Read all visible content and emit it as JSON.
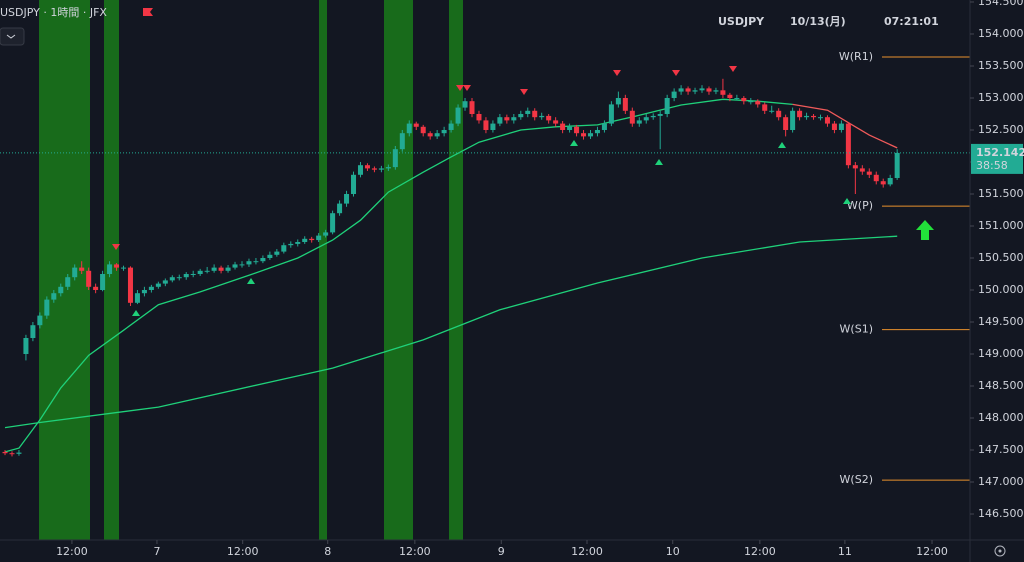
{
  "chart_data": {
    "type": "candlestick",
    "header": {
      "symbol_line": "USDJPY · 1時間 · JFX",
      "symbol": "USDJPY",
      "date": "10/13(月)",
      "time": "07:21:01"
    },
    "countdown": "38:58",
    "up_color": "#22ab94",
    "down_color": "#f23645",
    "ylim": [
      146.094,
      154.531
    ],
    "yticks": [
      {
        "value": 146.5,
        "label": "146.500"
      },
      {
        "value": 147,
        "label": "147.000"
      },
      {
        "value": 147.5,
        "label": "147.500"
      },
      {
        "value": 148,
        "label": "148.000"
      },
      {
        "value": 148.5,
        "label": "148.500"
      },
      {
        "value": 149,
        "label": "149.000"
      },
      {
        "value": 149.5,
        "label": "149.500"
      },
      {
        "value": 150,
        "label": "150.000"
      },
      {
        "value": 150.5,
        "label": "150.500"
      },
      {
        "value": 151,
        "label": "151.000"
      },
      {
        "value": 151.5,
        "label": "151.500"
      },
      {
        "value": 152,
        "label": "152.000"
      },
      {
        "value": 152.5,
        "label": "152.500"
      },
      {
        "value": 153,
        "label": "153.000"
      },
      {
        "value": 153.5,
        "label": "153.500"
      },
      {
        "value": 154,
        "label": "154.000"
      },
      {
        "value": 154.5,
        "label": "154.500"
      }
    ],
    "xlim": [
      -0.72,
      138.45
    ],
    "xticks": [
      {
        "value": 9.6,
        "label": "12:00"
      },
      {
        "value": 21.8,
        "label": "7"
      },
      {
        "value": 34.1,
        "label": "12:00"
      },
      {
        "value": 46.3,
        "label": "8"
      },
      {
        "value": 58.8,
        "label": "12:00"
      },
      {
        "value": 71.2,
        "label": "9"
      },
      {
        "value": 83.5,
        "label": "12:00"
      },
      {
        "value": 95.8,
        "label": "10"
      },
      {
        "value": 108.3,
        "label": "12:00"
      },
      {
        "value": 120.5,
        "label": "11"
      },
      {
        "value": 133.0,
        "label": "12:00"
      }
    ],
    "candles": [
      [
        147.47,
        147.5,
        147.42,
        147.45
      ],
      [
        147.45,
        147.48,
        147.4,
        147.44
      ],
      [
        147.44,
        147.5,
        147.41,
        147.46
      ],
      [
        149.0,
        149.3,
        148.9,
        149.25
      ],
      [
        149.25,
        149.5,
        149.2,
        149.45
      ],
      [
        149.45,
        149.65,
        149.4,
        149.6
      ],
      [
        149.6,
        149.9,
        149.55,
        149.85
      ],
      [
        149.85,
        150.0,
        149.8,
        149.95
      ],
      [
        149.95,
        150.1,
        149.9,
        150.05
      ],
      [
        150.05,
        150.25,
        150.0,
        150.2
      ],
      [
        150.2,
        150.4,
        150.15,
        150.35
      ],
      [
        150.35,
        150.45,
        150.25,
        150.3
      ],
      [
        150.3,
        150.35,
        150.0,
        150.05
      ],
      [
        150.05,
        150.1,
        149.95,
        150.0
      ],
      [
        150.0,
        150.3,
        149.98,
        150.25
      ],
      [
        150.25,
        150.45,
        150.2,
        150.4
      ],
      [
        150.4,
        150.42,
        150.3,
        150.35
      ],
      [
        150.35,
        150.38,
        150.3,
        150.35
      ],
      [
        150.35,
        150.37,
        149.75,
        149.8
      ],
      [
        149.8,
        150.0,
        149.78,
        149.95
      ],
      [
        149.95,
        150.05,
        149.9,
        150.0
      ],
      [
        150.0,
        150.08,
        149.96,
        150.05
      ],
      [
        150.05,
        150.13,
        150.02,
        150.1
      ],
      [
        150.1,
        150.18,
        150.06,
        150.15
      ],
      [
        150.15,
        150.23,
        150.12,
        150.2
      ],
      [
        150.2,
        150.24,
        150.15,
        150.2
      ],
      [
        150.2,
        150.28,
        150.16,
        150.25
      ],
      [
        150.25,
        150.3,
        150.2,
        150.25
      ],
      [
        150.25,
        150.33,
        150.22,
        150.3
      ],
      [
        150.3,
        150.36,
        150.26,
        150.3
      ],
      [
        150.3,
        150.4,
        150.27,
        150.35
      ],
      [
        150.35,
        150.38,
        150.26,
        150.3
      ],
      [
        150.3,
        150.39,
        150.27,
        150.35
      ],
      [
        150.35,
        150.44,
        150.32,
        150.4
      ],
      [
        150.4,
        150.45,
        150.35,
        150.4
      ],
      [
        150.4,
        150.49,
        150.36,
        150.45
      ],
      [
        150.45,
        150.5,
        150.4,
        150.45
      ],
      [
        150.45,
        150.54,
        150.42,
        150.5
      ],
      [
        150.5,
        150.6,
        150.47,
        150.55
      ],
      [
        150.55,
        150.64,
        150.52,
        150.6
      ],
      [
        150.6,
        150.74,
        150.57,
        150.7
      ],
      [
        150.7,
        150.76,
        150.66,
        150.72
      ],
      [
        150.72,
        150.79,
        150.68,
        150.75
      ],
      [
        150.75,
        150.84,
        150.72,
        150.8
      ],
      [
        150.8,
        150.83,
        150.74,
        150.78
      ],
      [
        150.78,
        150.89,
        150.75,
        150.85
      ],
      [
        150.85,
        150.94,
        150.82,
        150.9
      ],
      [
        150.9,
        151.24,
        150.87,
        151.2
      ],
      [
        151.2,
        151.4,
        151.16,
        151.35
      ],
      [
        151.35,
        151.55,
        151.3,
        151.5
      ],
      [
        151.5,
        151.85,
        151.46,
        151.8
      ],
      [
        151.8,
        152.0,
        151.76,
        151.95
      ],
      [
        151.95,
        151.98,
        151.86,
        151.9
      ],
      [
        151.9,
        151.93,
        151.84,
        151.88
      ],
      [
        151.88,
        151.94,
        151.84,
        151.9
      ],
      [
        151.9,
        151.96,
        151.86,
        151.92
      ],
      [
        151.92,
        152.25,
        151.88,
        152.2
      ],
      [
        152.2,
        152.5,
        152.16,
        152.45
      ],
      [
        152.45,
        152.65,
        152.4,
        152.6
      ],
      [
        152.6,
        152.63,
        152.5,
        152.55
      ],
      [
        152.55,
        152.58,
        152.4,
        152.45
      ],
      [
        152.45,
        152.48,
        152.35,
        152.4
      ],
      [
        152.4,
        152.5,
        152.36,
        152.45
      ],
      [
        152.45,
        152.55,
        152.4,
        152.5
      ],
      [
        152.5,
        152.65,
        152.46,
        152.6
      ],
      [
        152.6,
        152.9,
        152.56,
        152.85
      ],
      [
        152.85,
        153.0,
        152.8,
        152.95
      ],
      [
        152.95,
        153.0,
        152.7,
        152.75
      ],
      [
        152.75,
        152.8,
        152.6,
        152.65
      ],
      [
        152.65,
        152.7,
        152.45,
        152.5
      ],
      [
        152.5,
        152.65,
        152.46,
        152.6
      ],
      [
        152.6,
        152.75,
        152.56,
        152.7
      ],
      [
        152.7,
        152.74,
        152.6,
        152.65
      ],
      [
        152.65,
        152.75,
        152.6,
        152.7
      ],
      [
        152.7,
        152.8,
        152.66,
        152.75
      ],
      [
        152.75,
        152.85,
        152.7,
        152.8
      ],
      [
        152.8,
        152.84,
        152.65,
        152.7
      ],
      [
        152.7,
        152.77,
        152.66,
        152.72
      ],
      [
        152.72,
        152.75,
        152.6,
        152.65
      ],
      [
        152.65,
        152.7,
        152.55,
        152.6
      ],
      [
        152.6,
        152.64,
        152.45,
        152.5
      ],
      [
        152.5,
        152.6,
        152.46,
        152.55
      ],
      [
        152.55,
        152.58,
        152.4,
        152.45
      ],
      [
        152.45,
        152.5,
        152.35,
        152.4
      ],
      [
        152.4,
        152.5,
        152.36,
        152.45
      ],
      [
        152.45,
        152.55,
        152.4,
        152.5
      ],
      [
        152.5,
        152.65,
        152.46,
        152.6
      ],
      [
        152.6,
        152.95,
        152.56,
        152.9
      ],
      [
        152.9,
        153.1,
        152.85,
        153.0
      ],
      [
        153.0,
        153.05,
        152.75,
        152.8
      ],
      [
        152.8,
        152.85,
        152.55,
        152.6
      ],
      [
        152.6,
        152.7,
        152.55,
        152.65
      ],
      [
        152.65,
        152.75,
        152.6,
        152.7
      ],
      [
        152.7,
        152.76,
        152.66,
        152.72
      ],
      [
        152.72,
        152.8,
        152.2,
        152.75
      ],
      [
        152.75,
        153.05,
        152.7,
        153.0
      ],
      [
        153.0,
        153.15,
        152.95,
        153.1
      ],
      [
        153.1,
        153.2,
        153.05,
        153.15
      ],
      [
        153.15,
        153.18,
        153.05,
        153.1
      ],
      [
        153.1,
        153.16,
        153.06,
        153.12
      ],
      [
        153.12,
        153.2,
        153.08,
        153.15
      ],
      [
        153.15,
        153.18,
        153.05,
        153.1
      ],
      [
        153.1,
        153.16,
        153.06,
        153.12
      ],
      [
        153.12,
        153.3,
        153.0,
        153.05
      ],
      [
        153.05,
        153.08,
        152.95,
        153.0
      ],
      [
        153.0,
        153.05,
        152.96,
        153.0
      ],
      [
        153.0,
        153.03,
        152.9,
        152.95
      ],
      [
        152.95,
        153.0,
        152.9,
        152.95
      ],
      [
        152.95,
        152.98,
        152.85,
        152.9
      ],
      [
        152.9,
        152.93,
        152.75,
        152.8
      ],
      [
        152.8,
        152.88,
        152.76,
        152.8
      ],
      [
        152.8,
        152.84,
        152.65,
        152.7
      ],
      [
        152.7,
        152.74,
        152.4,
        152.5
      ],
      [
        152.5,
        152.85,
        152.46,
        152.8
      ],
      [
        152.8,
        152.84,
        152.65,
        152.7
      ],
      [
        152.7,
        152.77,
        152.66,
        152.72
      ],
      [
        152.72,
        152.75,
        152.66,
        152.7
      ],
      [
        152.7,
        152.74,
        152.65,
        152.7
      ],
      [
        152.7,
        152.73,
        152.55,
        152.6
      ],
      [
        152.6,
        152.64,
        152.45,
        152.5
      ],
      [
        152.5,
        152.65,
        152.46,
        152.6
      ],
      [
        152.6,
        152.62,
        151.9,
        151.95
      ],
      [
        151.95,
        152.0,
        151.5,
        151.9
      ],
      [
        151.9,
        151.95,
        151.8,
        151.85
      ],
      [
        151.85,
        151.9,
        151.75,
        151.8
      ],
      [
        151.8,
        151.85,
        151.65,
        151.7
      ],
      [
        151.7,
        151.74,
        151.6,
        151.65
      ],
      [
        151.65,
        151.8,
        151.62,
        151.75
      ],
      [
        151.75,
        152.2,
        151.72,
        152.142
      ]
    ],
    "lines": [
      {
        "color": "#1fd17a",
        "x": [
          0,
          2,
          5,
          8,
          12,
          17,
          22,
          28,
          35,
          42,
          47,
          51,
          55,
          60,
          64,
          68,
          74,
          79,
          85,
          91,
          97,
          103,
          108,
          113
        ],
        "values": [
          147.47,
          147.53,
          147.97,
          148.47,
          148.98,
          149.37,
          149.77,
          149.97,
          150.23,
          150.5,
          150.78,
          151.09,
          151.53,
          151.84,
          152.08,
          152.31,
          152.5,
          152.55,
          152.58,
          152.73,
          152.89,
          152.98,
          152.95,
          152.9
        ]
      },
      {
        "color": "#f05a5a",
        "x": [
          113,
          118,
          124,
          128
        ],
        "values": [
          152.9,
          152.81,
          152.42,
          152.22
        ]
      },
      {
        "color": "#1fd17a",
        "x": [
          0,
          5,
          22,
          47,
          60,
          71,
          85,
          100,
          114,
          128
        ],
        "values": [
          147.85,
          147.93,
          148.17,
          148.78,
          149.22,
          149.69,
          150.11,
          150.5,
          150.75,
          150.84
        ]
      }
    ],
    "pivots": [
      {
        "label": "W(R1)",
        "value": 153.64
      },
      {
        "label": "W(P)",
        "value": 151.31
      },
      {
        "label": "W(S1)",
        "value": 149.38
      },
      {
        "label": "W(S2)",
        "value": 147.03
      }
    ]
  }
}
